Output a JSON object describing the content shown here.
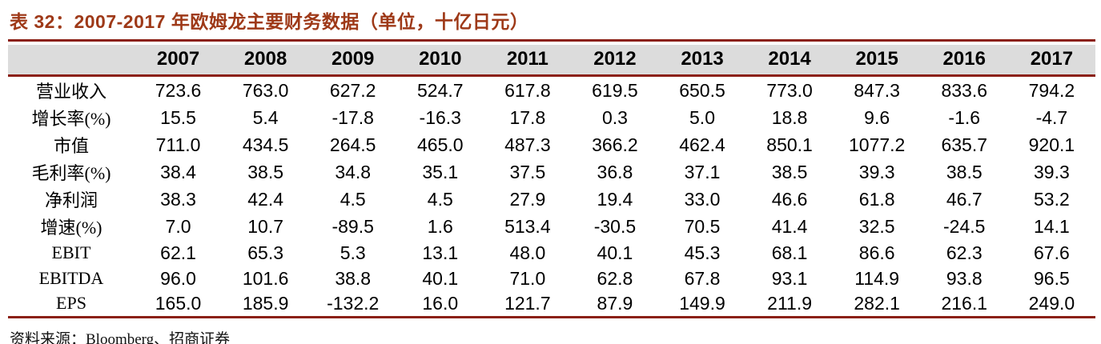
{
  "title": "表 32：2007-2017 年欧姆龙主要财务数据（单位，十亿日元）",
  "source": "资料来源：Bloomberg、招商证券",
  "colors": {
    "title_text": "#9E3918",
    "rule": "#8B2015",
    "header_bg": "#DCDCDC",
    "body_text": "#000000"
  },
  "table": {
    "years": [
      "2007",
      "2008",
      "2009",
      "2010",
      "2011",
      "2012",
      "2013",
      "2014",
      "2015",
      "2016",
      "2017"
    ],
    "rows": [
      {
        "label": "营业收入",
        "values": [
          "723.6",
          "763.0",
          "627.2",
          "524.7",
          "617.8",
          "619.5",
          "650.5",
          "773.0",
          "847.3",
          "833.6",
          "794.2"
        ]
      },
      {
        "label": "增长率(%)",
        "values": [
          "15.5",
          "5.4",
          "-17.8",
          "-16.3",
          "17.8",
          "0.3",
          "5.0",
          "18.8",
          "9.6",
          "-1.6",
          "-4.7"
        ]
      },
      {
        "label": "市值",
        "values": [
          "711.0",
          "434.5",
          "264.5",
          "465.0",
          "487.3",
          "366.2",
          "462.4",
          "850.1",
          "1077.2",
          "635.7",
          "920.1"
        ]
      },
      {
        "label": "毛利率(%)",
        "values": [
          "38.4",
          "38.5",
          "34.8",
          "35.1",
          "37.5",
          "36.8",
          "37.1",
          "38.5",
          "39.3",
          "38.5",
          "39.3"
        ]
      },
      {
        "label": "净利润",
        "values": [
          "38.3",
          "42.4",
          "4.5",
          "4.5",
          "27.9",
          "19.4",
          "33.0",
          "46.6",
          "61.8",
          "46.7",
          "53.2"
        ]
      },
      {
        "label": "增速(%)",
        "values": [
          "7.0",
          "10.7",
          "-89.5",
          "1.6",
          "513.4",
          "-30.5",
          "70.5",
          "41.4",
          "32.5",
          "-24.5",
          "14.1"
        ]
      },
      {
        "label": "EBIT",
        "values": [
          "62.1",
          "65.3",
          "5.3",
          "13.1",
          "48.0",
          "40.1",
          "45.3",
          "68.1",
          "86.6",
          "62.3",
          "67.6"
        ]
      },
      {
        "label": "EBITDA",
        "values": [
          "96.0",
          "101.6",
          "38.8",
          "40.1",
          "71.0",
          "62.8",
          "67.8",
          "93.1",
          "114.9",
          "93.8",
          "96.5"
        ]
      },
      {
        "label": "EPS",
        "values": [
          "165.0",
          "185.9",
          "-132.2",
          "16.0",
          "121.7",
          "87.9",
          "149.9",
          "211.9",
          "282.1",
          "216.1",
          "249.0"
        ]
      }
    ]
  },
  "chart_data": {
    "type": "table",
    "title": "表 32：2007-2017 年欧姆龙主要财务数据（单位，十亿日元）",
    "categories": [
      2007,
      2008,
      2009,
      2010,
      2011,
      2012,
      2013,
      2014,
      2015,
      2016,
      2017
    ],
    "series": [
      {
        "name": "营业收入",
        "values": [
          723.6,
          763.0,
          627.2,
          524.7,
          617.8,
          619.5,
          650.5,
          773.0,
          847.3,
          833.6,
          794.2
        ]
      },
      {
        "name": "增长率(%)",
        "values": [
          15.5,
          5.4,
          -17.8,
          -16.3,
          17.8,
          0.3,
          5.0,
          18.8,
          9.6,
          -1.6,
          -4.7
        ]
      },
      {
        "name": "市值",
        "values": [
          711.0,
          434.5,
          264.5,
          465.0,
          487.3,
          366.2,
          462.4,
          850.1,
          1077.2,
          635.7,
          920.1
        ]
      },
      {
        "name": "毛利率(%)",
        "values": [
          38.4,
          38.5,
          34.8,
          35.1,
          37.5,
          36.8,
          37.1,
          38.5,
          39.3,
          38.5,
          39.3
        ]
      },
      {
        "name": "净利润",
        "values": [
          38.3,
          42.4,
          4.5,
          4.5,
          27.9,
          19.4,
          33.0,
          46.6,
          61.8,
          46.7,
          53.2
        ]
      },
      {
        "name": "增速(%)",
        "values": [
          7.0,
          10.7,
          -89.5,
          1.6,
          513.4,
          -30.5,
          70.5,
          41.4,
          32.5,
          -24.5,
          14.1
        ]
      },
      {
        "name": "EBIT",
        "values": [
          62.1,
          65.3,
          5.3,
          13.1,
          48.0,
          40.1,
          45.3,
          68.1,
          86.6,
          62.3,
          67.6
        ]
      },
      {
        "name": "EBITDA",
        "values": [
          96.0,
          101.6,
          38.8,
          40.1,
          71.0,
          62.8,
          67.8,
          93.1,
          114.9,
          93.8,
          96.5
        ]
      },
      {
        "name": "EPS",
        "values": [
          165.0,
          185.9,
          -132.2,
          16.0,
          121.7,
          87.9,
          149.9,
          211.9,
          282.1,
          216.1,
          249.0
        ]
      }
    ],
    "source": "资料来源：Bloomberg、招商证券"
  }
}
